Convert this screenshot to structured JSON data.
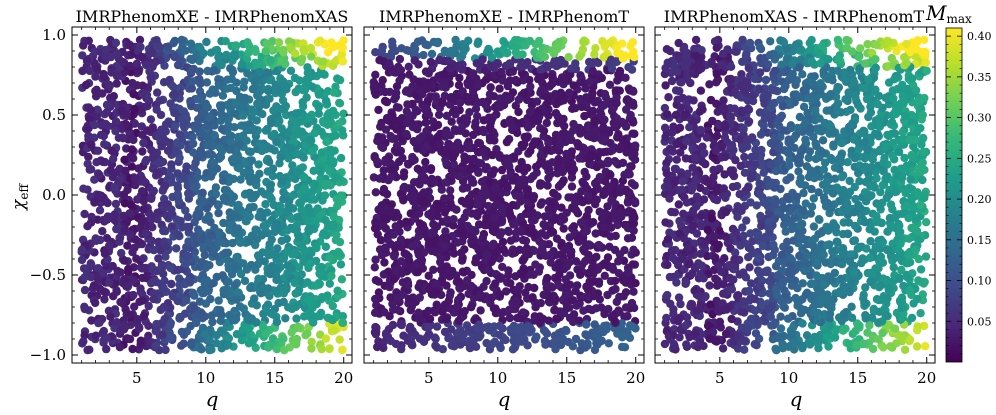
{
  "chart_data": [
    {
      "type": "scatter",
      "title": "IMRPhenomXE - IMRPhenomXAS",
      "xlabel": "q",
      "ylabel": "χ_eff",
      "xlim": [
        0.3,
        20.6
      ],
      "ylim": [
        -1.05,
        1.05
      ],
      "xticks": [
        5,
        10,
        15,
        20
      ],
      "yticks": [
        1.0,
        0.5,
        0.0,
        -0.5,
        -1.0
      ],
      "ytick_labels": [
        "1.0",
        "0.5",
        "0.0",
        "−0.5",
        "−1.0"
      ],
      "x_range": [
        1,
        20
      ],
      "y_range": [
        -0.97,
        0.97
      ],
      "color_variable": "M_max",
      "pattern": "xas"
    },
    {
      "type": "scatter",
      "title": "IMRPhenomXE - IMRPhenomT",
      "xlabel": "q",
      "xlim": [
        0.3,
        20.6
      ],
      "ylim": [
        -1.05,
        1.05
      ],
      "xticks": [
        5,
        10,
        15,
        20
      ],
      "x_range": [
        1,
        20
      ],
      "y_range": [
        -0.97,
        0.97
      ],
      "color_variable": "M_max",
      "pattern": "t"
    },
    {
      "type": "scatter",
      "title": "IMRPhenomXAS - IMRPhenomT",
      "xlabel": "q",
      "xlim": [
        0.3,
        20.6
      ],
      "ylim": [
        -1.05,
        1.05
      ],
      "xticks": [
        5,
        10,
        15,
        20
      ],
      "x_range": [
        1,
        20
      ],
      "y_range": [
        -0.97,
        0.97
      ],
      "color_variable": "M_max",
      "pattern": "xas"
    }
  ],
  "colorbar": {
    "label": "M",
    "label_sub": "max",
    "range": [
      0.0,
      0.41
    ],
    "ticks": [
      0.05,
      0.1,
      0.15,
      0.2,
      0.25,
      0.3,
      0.35,
      0.4
    ],
    "tick_labels": [
      "0.05",
      "0.10",
      "0.15",
      "0.20",
      "0.25",
      "0.30",
      "0.35",
      "0.40"
    ],
    "colormap": "viridis",
    "colors": [
      "#440154",
      "#482878",
      "#3e4a89",
      "#31688e",
      "#26828e",
      "#1f9e89",
      "#35b779",
      "#6ece58",
      "#b5de2b",
      "#fde725"
    ]
  },
  "marks": {
    "xlabel": "q",
    "ylabel_main": "χ",
    "ylabel_sub": "eff"
  }
}
